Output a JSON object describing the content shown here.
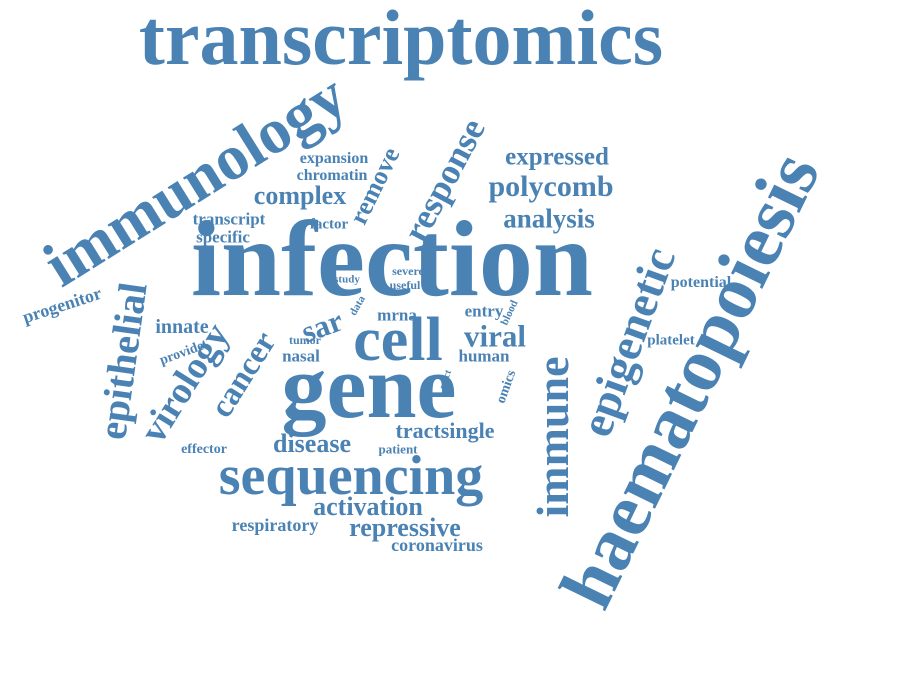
{
  "color": "#4a82b4",
  "words": [
    {
      "text": "transcriptomics"
    },
    {
      "text": "haematopoiesis"
    },
    {
      "text": "infection"
    },
    {
      "text": "immunology"
    },
    {
      "text": "gene"
    },
    {
      "text": "cell"
    },
    {
      "text": "sequencing"
    },
    {
      "text": "immune"
    },
    {
      "text": "epigenetic"
    },
    {
      "text": "response"
    },
    {
      "text": "epithelial"
    },
    {
      "text": "virology"
    },
    {
      "text": "cancer"
    },
    {
      "text": "polycomb"
    },
    {
      "text": "expressed"
    },
    {
      "text": "analysis"
    },
    {
      "text": "complex"
    },
    {
      "text": "remove"
    },
    {
      "text": "viral"
    },
    {
      "text": "sar"
    },
    {
      "text": "activation"
    },
    {
      "text": "repressive"
    },
    {
      "text": "disease"
    },
    {
      "text": "tractsingle"
    },
    {
      "text": "innate"
    },
    {
      "text": "progenitor"
    },
    {
      "text": "potential"
    },
    {
      "text": "coronavirus"
    },
    {
      "text": "respiratory"
    },
    {
      "text": "expansion"
    },
    {
      "text": "chromatin"
    },
    {
      "text": "transcript"
    },
    {
      "text": "specific"
    },
    {
      "text": "factor"
    },
    {
      "text": "human"
    },
    {
      "text": "nasal"
    },
    {
      "text": "mrna"
    },
    {
      "text": "entry"
    },
    {
      "text": "platelet"
    },
    {
      "text": "provide"
    },
    {
      "text": "effector"
    },
    {
      "text": "patient"
    },
    {
      "text": "omics"
    },
    {
      "text": "tumor"
    },
    {
      "text": "study"
    },
    {
      "text": "severe"
    },
    {
      "text": "useful"
    },
    {
      "text": "data"
    },
    {
      "text": "blood"
    },
    {
      "text": "evict"
    }
  ]
}
